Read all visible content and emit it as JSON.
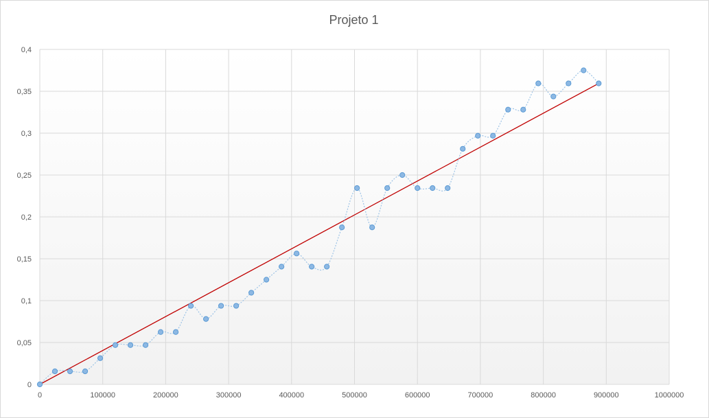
{
  "chart_data": {
    "type": "scatter",
    "title": "Projeto 1",
    "xlabel": "",
    "ylabel": "",
    "xlim": [
      0,
      1000000
    ],
    "ylim": [
      0,
      0.4
    ],
    "grid": true,
    "x_ticks": [
      "0",
      "100000",
      "200000",
      "300000",
      "400000",
      "500000",
      "600000",
      "700000",
      "800000",
      "900000",
      "1000000"
    ],
    "y_ticks": [
      "0",
      "0,05",
      "0,1",
      "0,15",
      "0,2",
      "0,25",
      "0,3",
      "0,35",
      "0,4"
    ],
    "colors": {
      "points": "#8db8e3",
      "point_stroke": "#5b9bd5",
      "smooth_line": "#9dc3e6",
      "trendline": "#c00000",
      "grid": "#d9d9d9"
    },
    "series": [
      {
        "values": [
          [
            0,
            0
          ],
          [
            24000,
            0.0156
          ],
          [
            48000,
            0.0156
          ],
          [
            72000,
            0.0156
          ],
          [
            96000,
            0.0313
          ],
          [
            120000,
            0.0469
          ],
          [
            144000,
            0.0469
          ],
          [
            168000,
            0.0469
          ],
          [
            192000,
            0.0625
          ],
          [
            216000,
            0.0625
          ],
          [
            240000,
            0.0938
          ],
          [
            264000,
            0.0781
          ],
          [
            288000,
            0.0938
          ],
          [
            312000,
            0.0938
          ],
          [
            336000,
            0.1094
          ],
          [
            360000,
            0.125
          ],
          [
            384000,
            0.1406
          ],
          [
            408000,
            0.1563
          ],
          [
            432000,
            0.1406
          ],
          [
            456000,
            0.1406
          ],
          [
            480000,
            0.1875
          ],
          [
            504000,
            0.2344
          ],
          [
            528000,
            0.1875
          ],
          [
            552000,
            0.2344
          ],
          [
            576000,
            0.25
          ],
          [
            600000,
            0.2344
          ],
          [
            624000,
            0.2344
          ],
          [
            648000,
            0.2344
          ],
          [
            672000,
            0.2813
          ],
          [
            696000,
            0.2969
          ],
          [
            720000,
            0.2969
          ],
          [
            744000,
            0.3281
          ],
          [
            768000,
            0.3281
          ],
          [
            792000,
            0.3594
          ],
          [
            816000,
            0.3438
          ],
          [
            840000,
            0.3594
          ],
          [
            864000,
            0.375
          ],
          [
            888000,
            0.3594
          ]
        ]
      }
    ],
    "trendline": {
      "from": [
        0,
        0
      ],
      "to": [
        888000,
        0.3594
      ]
    }
  }
}
